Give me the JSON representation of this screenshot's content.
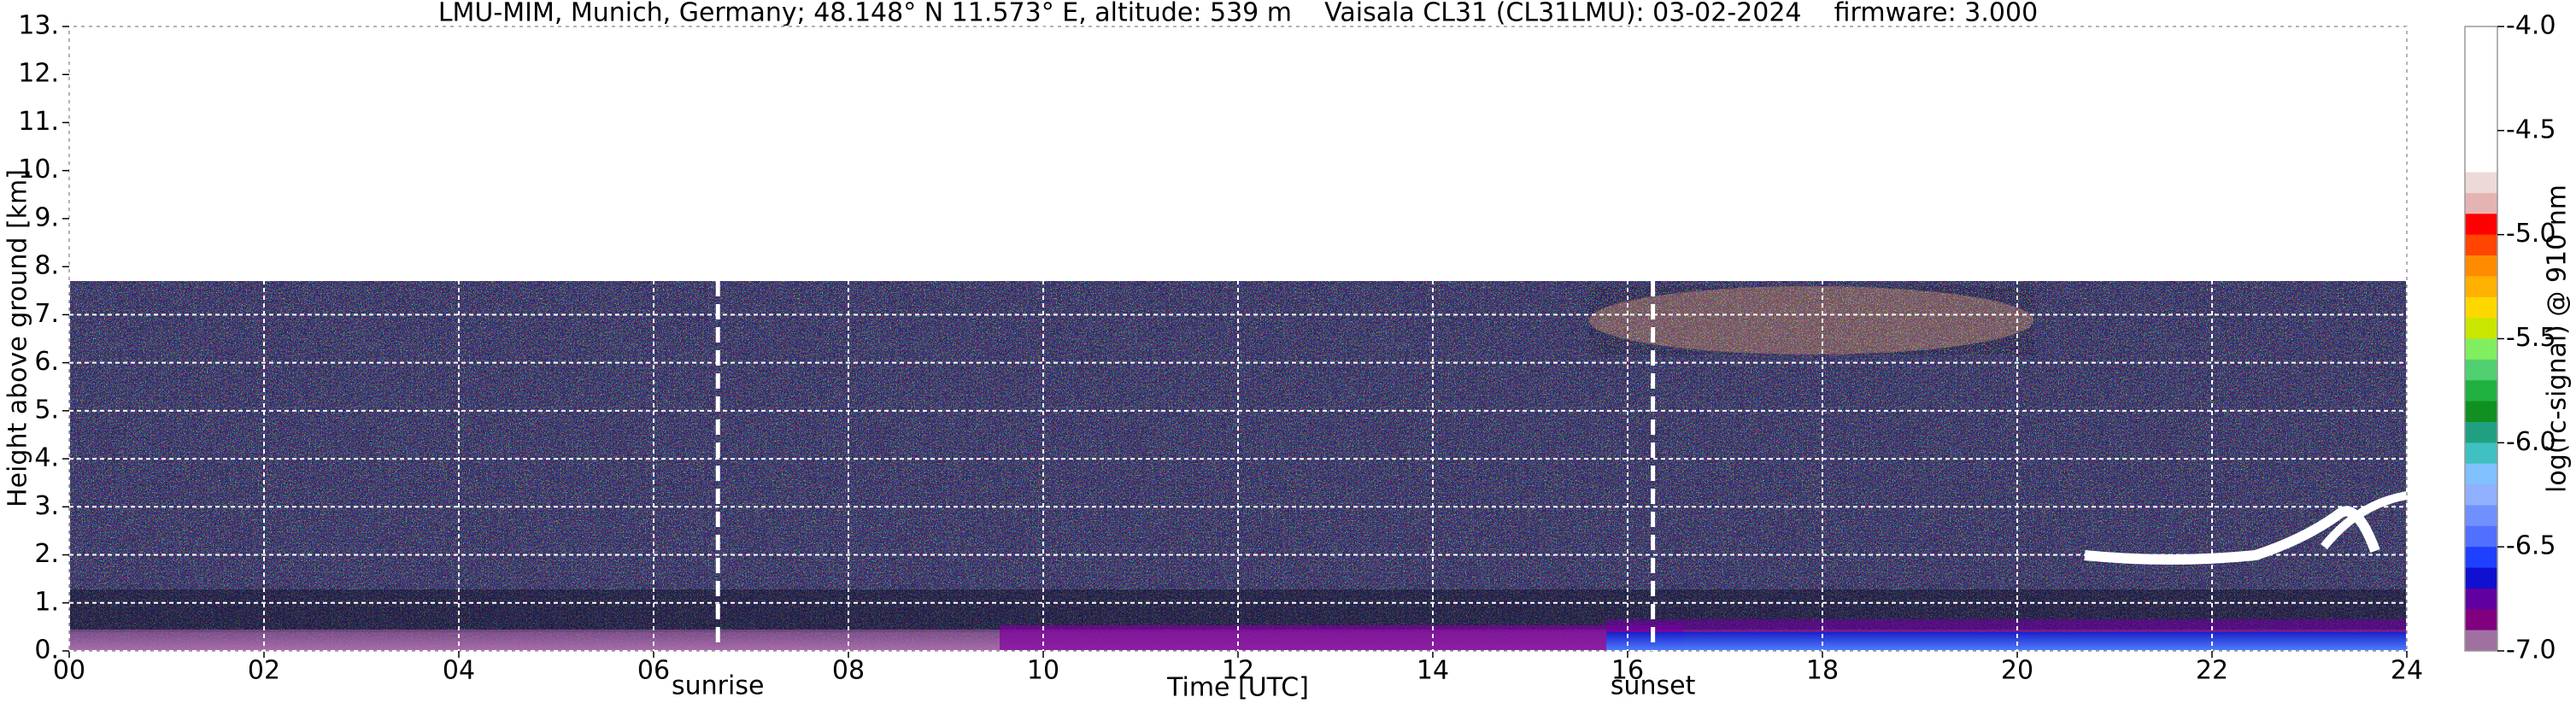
{
  "chart_data": {
    "type": "heatmap",
    "title": "LMU-MIM, Munich, Germany; 48.148° N 11.573° E, altitude: 539 m    Vaisala CL31 (CL31LMU): 03-02-2024    firmware: 3.000",
    "xlabel": "Time [UTC]",
    "ylabel": "Height above ground [km]",
    "xlim": [
      0,
      24
    ],
    "xticks": [
      {
        "value": 0,
        "label": "00"
      },
      {
        "value": 2,
        "label": "02"
      },
      {
        "value": 4,
        "label": "04"
      },
      {
        "value": 6,
        "label": "06"
      },
      {
        "value": 8,
        "label": "08"
      },
      {
        "value": 10,
        "label": "10"
      },
      {
        "value": 12,
        "label": "12"
      },
      {
        "value": 14,
        "label": "14"
      },
      {
        "value": 16,
        "label": "16"
      },
      {
        "value": 18,
        "label": "18"
      },
      {
        "value": 20,
        "label": "20"
      },
      {
        "value": 22,
        "label": "22"
      },
      {
        "value": 24,
        "label": "24"
      }
    ],
    "ylim": [
      0,
      13
    ],
    "yticks": [
      {
        "value": 0,
        "label": "0."
      },
      {
        "value": 1,
        "label": "1."
      },
      {
        "value": 2,
        "label": "2."
      },
      {
        "value": 3,
        "label": "3."
      },
      {
        "value": 4,
        "label": "4."
      },
      {
        "value": 5,
        "label": "5."
      },
      {
        "value": 6,
        "label": "6."
      },
      {
        "value": 7,
        "label": "7."
      },
      {
        "value": 8,
        "label": "8."
      },
      {
        "value": 9,
        "label": "9."
      },
      {
        "value": 10,
        "label": "10."
      },
      {
        "value": 11,
        "label": "11."
      },
      {
        "value": 12,
        "label": "12."
      },
      {
        "value": 13,
        "label": "13."
      }
    ],
    "grid": true,
    "annotations": [
      {
        "label": "sunrise",
        "x": 6.66
      },
      {
        "label": "sunset",
        "x": 16.26
      }
    ],
    "colorbar": {
      "label": "log(rc-signal) @ 910 nm",
      "clim": [
        -7.0,
        -4.0
      ],
      "ticks": [
        {
          "value": -4.0,
          "label": "-4.0"
        },
        {
          "value": -4.5,
          "label": "-4.5"
        },
        {
          "value": -5.0,
          "label": "-5.0"
        },
        {
          "value": -5.5,
          "label": "-5.5"
        },
        {
          "value": -6.0,
          "label": "-6.0"
        },
        {
          "value": -6.5,
          "label": "-6.5"
        },
        {
          "value": -7.0,
          "label": "-7.0"
        }
      ],
      "colors": [
        "#ffffff",
        "#ffffff",
        "#ffffff",
        "#ffffff",
        "#ffffff",
        "#ffffff",
        "#ffffff",
        "#eed9d9",
        "#e6b3b3",
        "#ff0000",
        "#ff4500",
        "#ff8c00",
        "#ffb000",
        "#ffd700",
        "#c8e600",
        "#80ee60",
        "#50d070",
        "#20b040",
        "#109020",
        "#20a080",
        "#40c0c0",
        "#80c0ff",
        "#90b0ff",
        "#7090ff",
        "#5070ff",
        "#2040ff",
        "#1010d0",
        "#6000a0",
        "#800080",
        "#a070a0"
      ]
    }
  }
}
